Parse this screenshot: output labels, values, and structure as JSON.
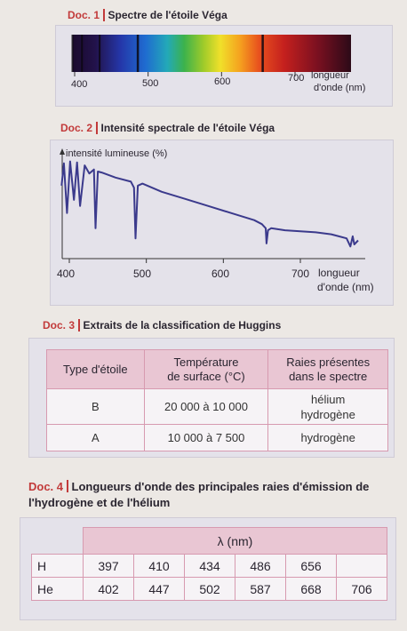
{
  "doc1": {
    "num": "Doc. 1",
    "title": "Spectre de l'étoile Véga",
    "ticks": [
      "400",
      "500",
      "600",
      "700"
    ],
    "axis_label_1": "longueur",
    "axis_label_2": "d'onde (nm)",
    "absorption_lines_nm": [
      397,
      410,
      434,
      486,
      656
    ]
  },
  "doc2": {
    "num": "Doc. 2",
    "title": "Intensité spectrale de l'étoile Véga",
    "ylabel": "intensité lumineuse (%)",
    "ticks": [
      "400",
      "500",
      "600",
      "700"
    ],
    "axis_label_1": "longueur",
    "axis_label_2": "d'onde (nm)"
  },
  "chart_data": {
    "type": "line",
    "title": "Intensité spectrale de l'étoile Véga",
    "xlabel": "longueur d'onde (nm)",
    "ylabel": "intensité lumineuse (%)",
    "xlim": [
      390,
      775
    ],
    "ylim": [
      0,
      100
    ],
    "grid": false,
    "x": [
      390,
      393,
      397,
      401,
      406,
      410,
      414,
      420,
      426,
      432,
      434,
      437,
      442,
      460,
      480,
      484,
      486,
      489,
      495,
      520,
      550,
      580,
      610,
      640,
      650,
      655,
      656,
      658,
      662,
      680,
      700,
      720,
      740,
      760,
      765,
      768,
      770,
      775
    ],
    "y": [
      72,
      94,
      45,
      96,
      58,
      95,
      52,
      92,
      84,
      88,
      30,
      86,
      85,
      80,
      76,
      70,
      20,
      72,
      74,
      66,
      59,
      52,
      45,
      38,
      34,
      30,
      15,
      28,
      30,
      28,
      27,
      26,
      24,
      20,
      12,
      22,
      14,
      18
    ]
  },
  "doc3": {
    "num": "Doc. 3",
    "title": "Extraits de la classification de Huggins",
    "headers": [
      [
        "Type d'étoile"
      ],
      [
        "Température",
        "de surface (°C)"
      ],
      [
        "Raies présentes",
        "dans le spectre"
      ]
    ],
    "rows": [
      {
        "type": "B",
        "temp": "20 000 à 10 000",
        "raies": [
          "hélium",
          "hydrogène"
        ]
      },
      {
        "type": "A",
        "temp": "10 000 à 7 500",
        "raies": [
          "hydrogène"
        ]
      }
    ]
  },
  "doc4": {
    "num": "Doc. 4",
    "title_line1": "Longueurs d'onde des principales raies d'émission de",
    "title_line2": "l'hydrogène et de l'hélium",
    "unit_header": "λ (nm)",
    "rows": [
      {
        "label": "H",
        "values": [
          "397",
          "410",
          "434",
          "486",
          "656",
          ""
        ]
      },
      {
        "label": "He",
        "values": [
          "402",
          "447",
          "502",
          "587",
          "668",
          "706"
        ]
      }
    ]
  },
  "colors": {
    "accent": "#c23a3a",
    "table_header": "#e9c6d3",
    "curve": "#3b3a8c"
  }
}
